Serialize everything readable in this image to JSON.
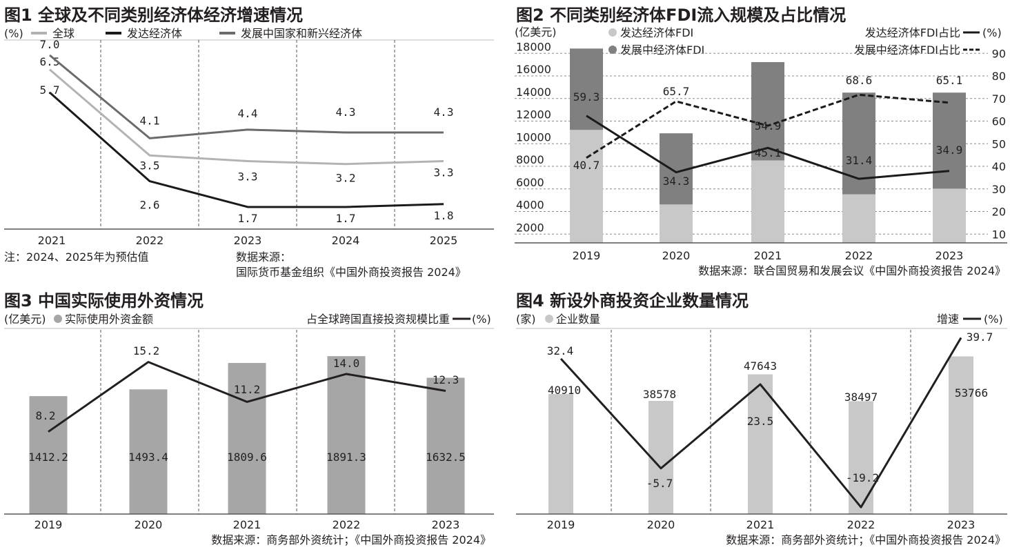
{
  "chart_data": [
    {
      "type": "line",
      "title": "图1 全球及不同类别经济体经济增速情况",
      "ylabel": "(%)",
      "categories": [
        "2021",
        "2022",
        "2023",
        "2024",
        "2025"
      ],
      "series": [
        {
          "name": "全球",
          "values": [
            6.5,
            3.5,
            3.3,
            3.2,
            3.3
          ],
          "color": "#b3b3b3"
        },
        {
          "name": "发达经济体",
          "values": [
            5.7,
            2.6,
            1.7,
            1.7,
            1.8
          ],
          "color": "#1a1a1a"
        },
        {
          "name": "发展中国家和新兴经济体",
          "values": [
            7.0,
            4.1,
            4.4,
            4.3,
            4.3
          ],
          "color": "#6b6b6b"
        }
      ],
      "note": "注：2024、2025年为预估值",
      "source_line1": "数据来源：",
      "source_line2": "国际货币基金组织《中国外商投资报告 2024》"
    },
    {
      "type": "bar",
      "stacked": true,
      "title": "图2 不同类别经济体FDI流入规模及占比情况",
      "ylabel": "(亿美元)",
      "y2label": "(%)",
      "categories": [
        "2019",
        "2020",
        "2021",
        "2022",
        "2023"
      ],
      "yticks": [
        2000,
        4000,
        6000,
        8000,
        10000,
        12000,
        14000,
        16000,
        18000
      ],
      "y2ticks": [
        10,
        20,
        30,
        40,
        50,
        60,
        70,
        80,
        90
      ],
      "bars": [
        {
          "name": "发达经济体FDI",
          "values": [
            10000,
            3400,
            7300,
            4300,
            4800
          ],
          "color": "#c8c8c8"
        },
        {
          "name": "发展中经济体FDI",
          "values": [
            7200,
            6300,
            8700,
            9000,
            8500
          ],
          "color": "#808080"
        }
      ],
      "lines": [
        {
          "name": "发达经济体FDI占比",
          "values": [
            59.3,
            34.3,
            45.1,
            31.4,
            34.9
          ],
          "style": "solid"
        },
        {
          "name": "发展中经济体FDI占比",
          "values": [
            40.7,
            65.7,
            54.9,
            68.6,
            65.1
          ],
          "style": "dashed"
        }
      ],
      "source": "数据来源：联合国贸易和发展会议《中国外商投资报告 2024》"
    },
    {
      "type": "bar",
      "title": "图3 中国实际使用外资情况",
      "ylabel": "(亿美元)",
      "y2label": "(%)",
      "categories": [
        "2019",
        "2020",
        "2021",
        "2022",
        "2023"
      ],
      "bars": [
        {
          "name": "实际使用外资金额",
          "values": [
            1412.2,
            1493.4,
            1809.6,
            1891.3,
            1632.5
          ],
          "color": "#a6a6a6"
        }
      ],
      "lines": [
        {
          "name": "占全球跨国直接投资规模比重",
          "values": [
            8.2,
            15.2,
            11.2,
            14.0,
            12.3
          ]
        }
      ],
      "source": "数据来源：商务部外资统计；《中国外商投资报告 2024》"
    },
    {
      "type": "bar",
      "title": "图4 新设外商投资企业数量情况",
      "ylabel": "(家)",
      "y2label": "(%)",
      "categories": [
        "2019",
        "2020",
        "2021",
        "2022",
        "2023"
      ],
      "bars": [
        {
          "name": "企业数量",
          "values": [
            40910,
            38578,
            47643,
            38497,
            53766
          ],
          "color": "#c8c8c8"
        }
      ],
      "lines": [
        {
          "name": "增速",
          "values": [
            32.4,
            -5.7,
            23.5,
            -19.2,
            39.7
          ]
        }
      ],
      "source": "数据来源：商务部外资统计；《中国外商投资报告 2024》"
    }
  ]
}
